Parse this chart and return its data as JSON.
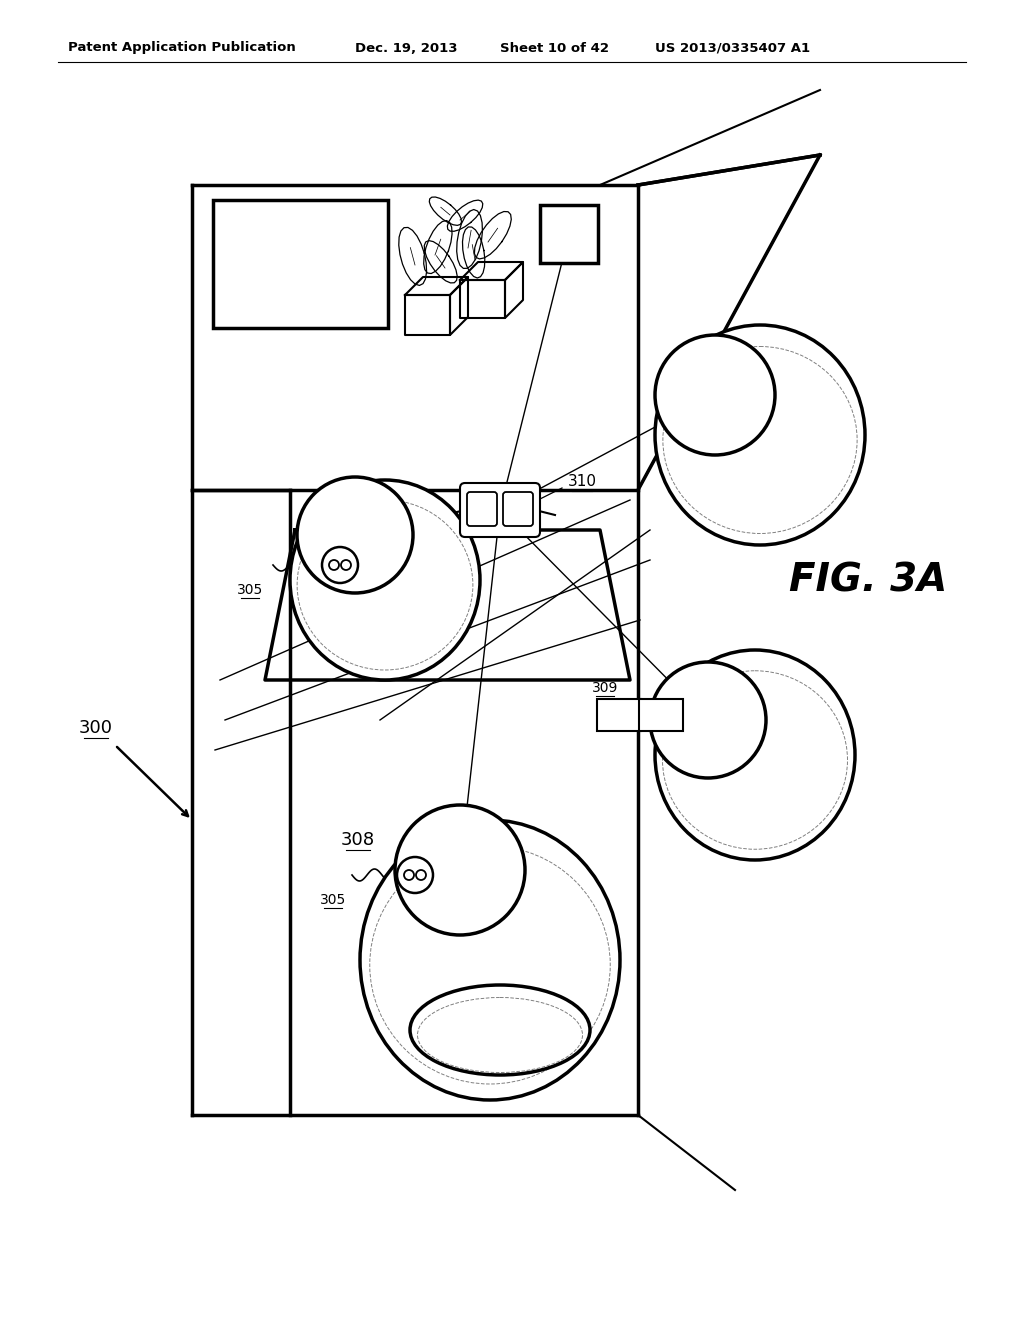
{
  "bg_color": "#ffffff",
  "header_text": "Patent Application Publication",
  "header_date": "Dec. 19, 2013",
  "header_sheet": "Sheet 10 of 42",
  "header_patent": "US 2013/0335407 A1",
  "fig_label": "FIG. 3A",
  "lw_main": 2.5,
  "lw_med": 1.5,
  "lw_thin": 0.9,
  "lw_ray": 1.0
}
